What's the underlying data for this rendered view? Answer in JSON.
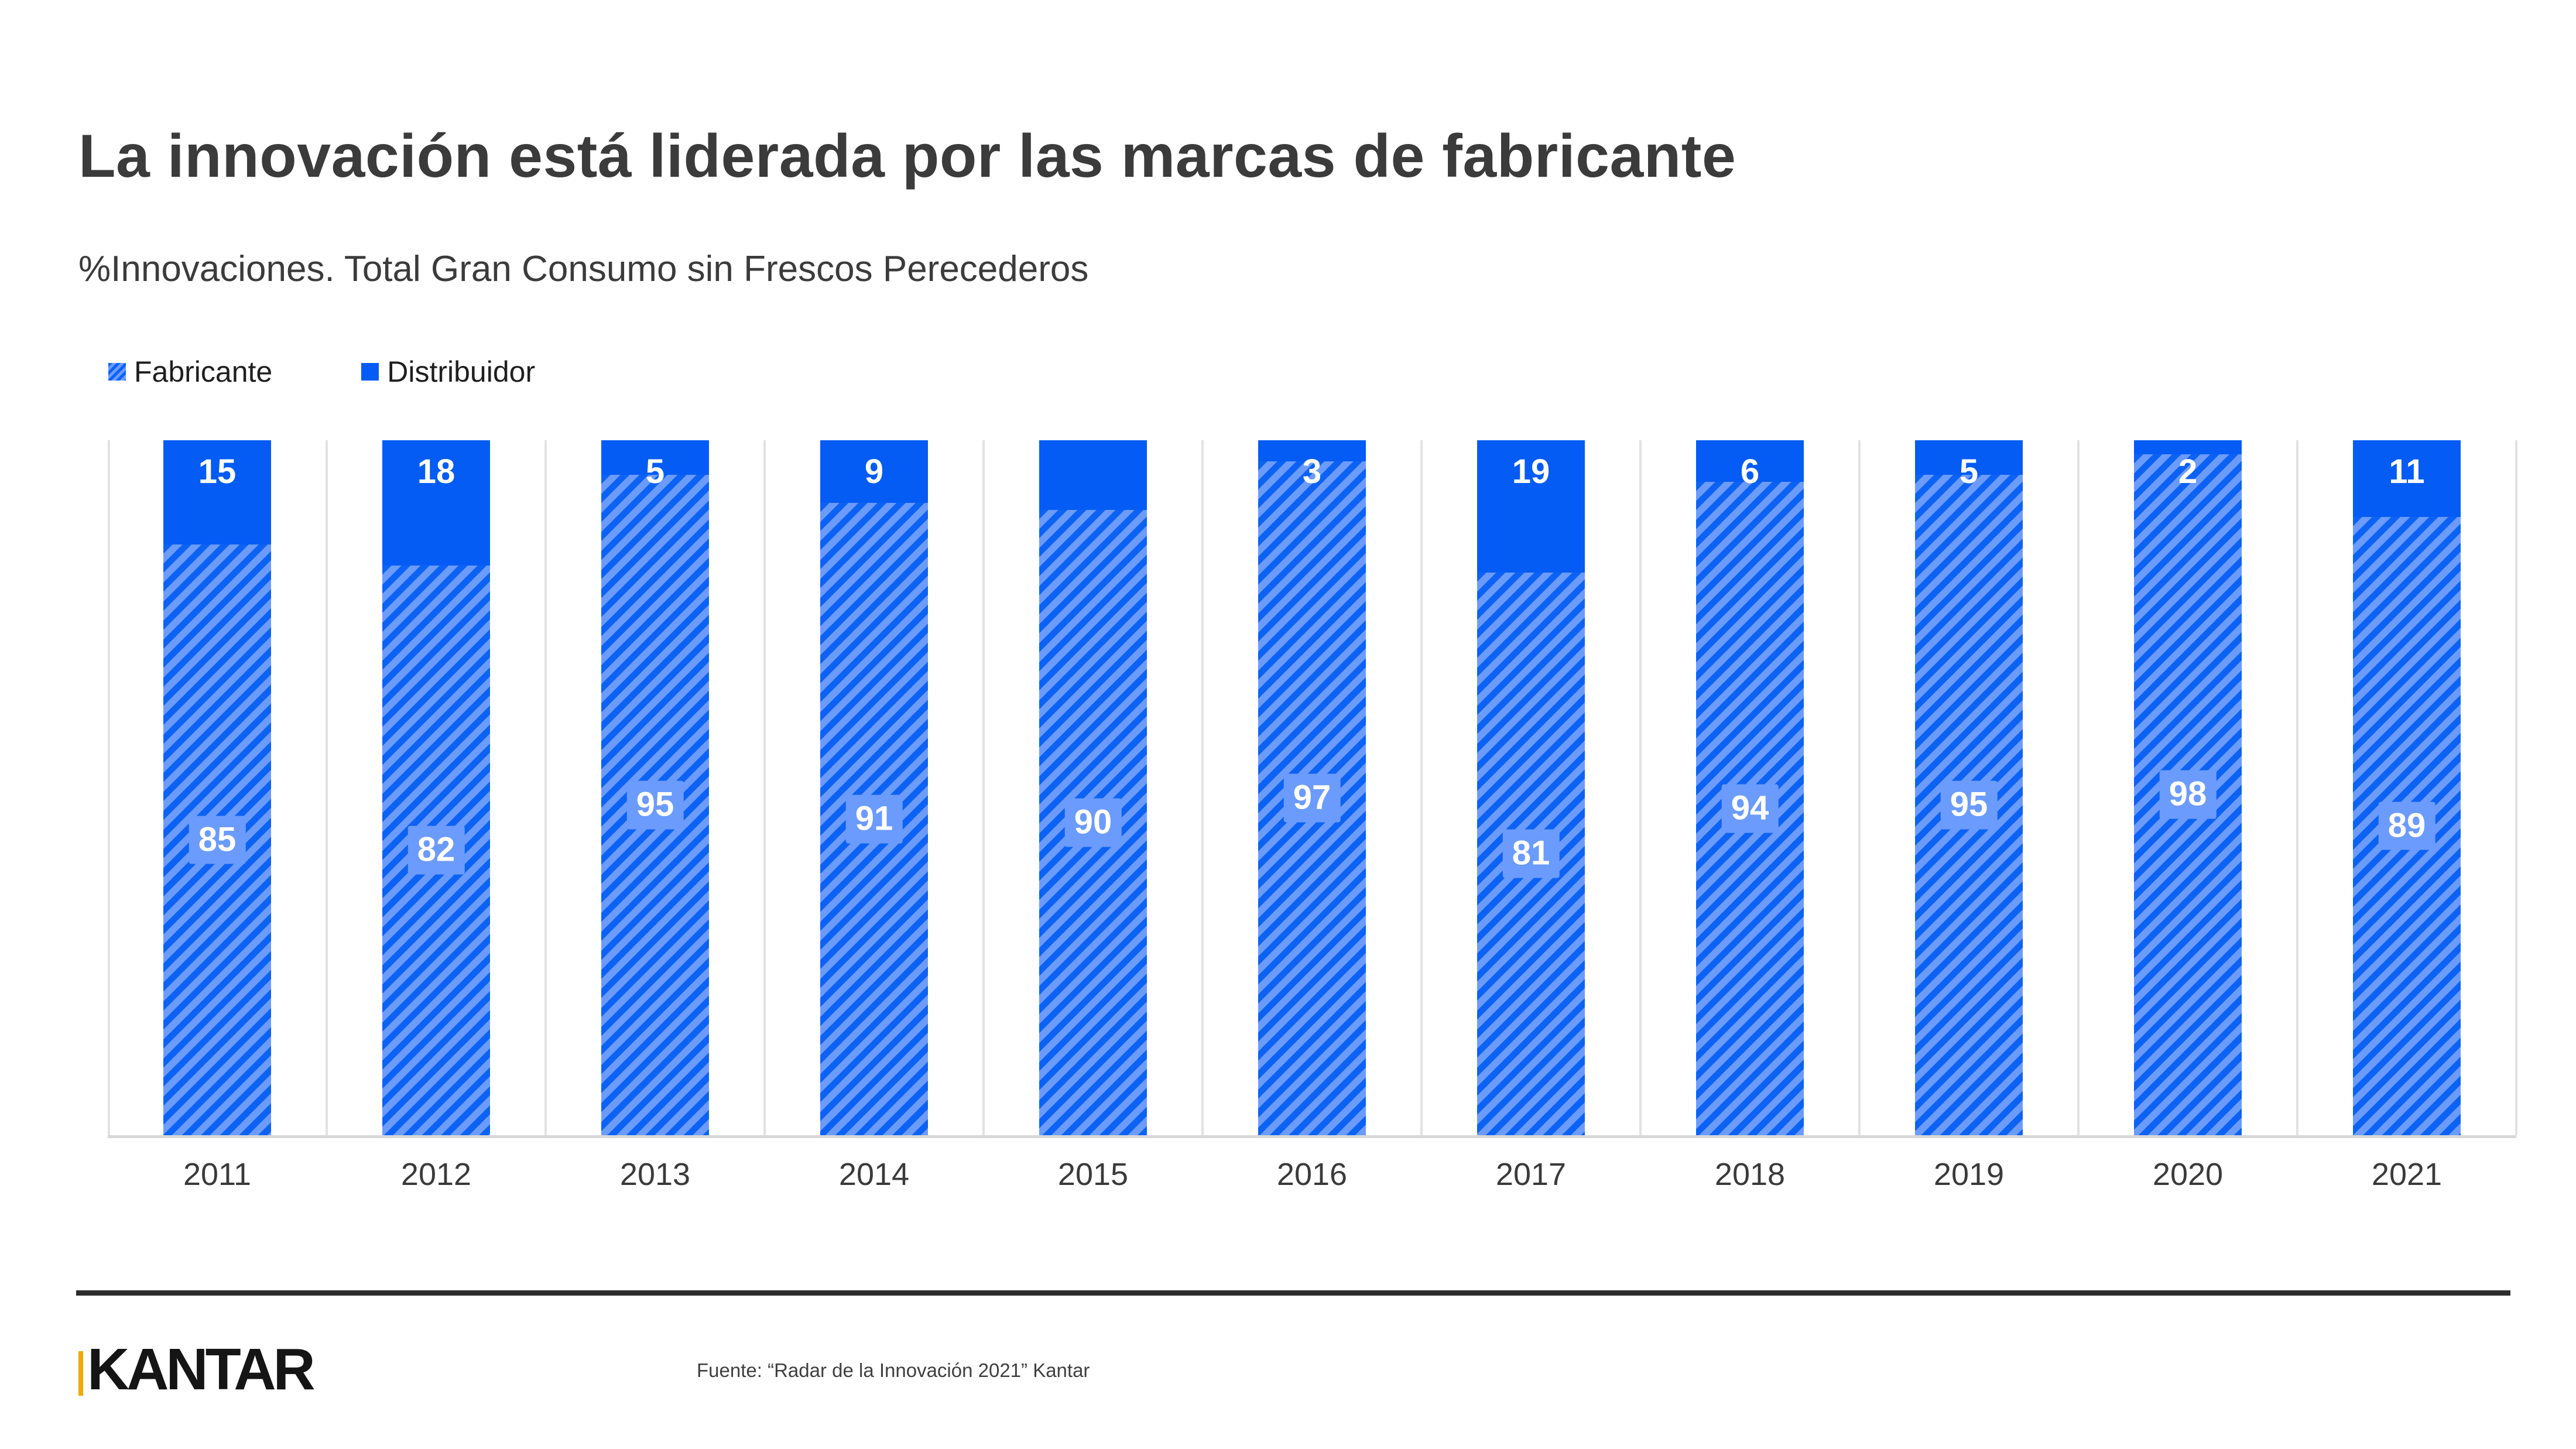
{
  "slide": {
    "title": "La innovación está liderada por las marcas de fabricante",
    "subtitle": "%Innovaciones. Total Gran Consumo sin Frescos Perecederos"
  },
  "legend": {
    "items": [
      {
        "label": "Fabricante",
        "swatch": "hatched"
      },
      {
        "label": "Distribuidor",
        "swatch": "solid"
      }
    ]
  },
  "footer": {
    "logo_text": "KANTAR",
    "source": "Fuente: “Radar de la Innovación 2021” Kantar"
  },
  "colors": {
    "distribuidor_solid": "#045cf4",
    "fabricante_hatch_base": "#6b9bfc",
    "fabricante_hatch_stripe": "#0c62f4",
    "value_label_text": "#ffffff",
    "gridline": "#e2e2e2",
    "baseline": "#d8d8d8",
    "divider": "#2d2d2d",
    "logo_gold": "#eea904",
    "title_text": "#3b3b3b"
  },
  "chart_data": {
    "type": "bar",
    "stacked": true,
    "orientation": "vertical",
    "categories": [
      "2011",
      "2012",
      "2013",
      "2014",
      "2015",
      "2016",
      "2017",
      "2018",
      "2019",
      "2020",
      "2021"
    ],
    "series": [
      {
        "name": "Fabricante",
        "style": "hatched",
        "values": [
          85,
          82,
          95,
          91,
          90,
          97,
          81,
          94,
          95,
          98,
          89
        ],
        "labels": [
          "85",
          "82",
          "95",
          "91",
          "90",
          "97",
          "81",
          "94",
          "95",
          "98",
          "89"
        ]
      },
      {
        "name": "Distribuidor",
        "style": "solid",
        "values": [
          15,
          18,
          5,
          9,
          10,
          3,
          19,
          6,
          5,
          2,
          11
        ],
        "labels": [
          "15",
          "18",
          "5",
          "9",
          "",
          "3",
          "19",
          "6",
          "5",
          "2",
          "11"
        ]
      }
    ],
    "ylim": [
      0,
      100
    ],
    "y_axis_visible": false,
    "grid": "vertical-category-separators",
    "legend_position": "top-left"
  }
}
